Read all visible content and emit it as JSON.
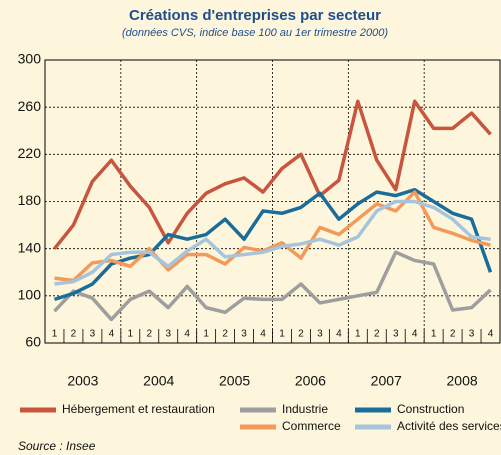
{
  "chart_data": {
    "type": "line",
    "title": "Créations d'entreprises par secteur",
    "subtitle": "(données CVS, indice base 100 au 1er trimestre 2000)",
    "categories": [
      "1",
      "2",
      "3",
      "4",
      "1",
      "2",
      "3",
      "4",
      "1",
      "2",
      "3",
      "4",
      "1",
      "2",
      "3",
      "4",
      "1",
      "2",
      "3",
      "4",
      "1",
      "2",
      "3",
      "4"
    ],
    "years": [
      "2003",
      "2004",
      "2005",
      "2006",
      "2007",
      "2008"
    ],
    "ylim": [
      60,
      300
    ],
    "yticks": [
      60,
      100,
      140,
      180,
      220,
      260,
      300
    ],
    "grid": true,
    "series": [
      {
        "name": "Hébergement et restauration",
        "color": "#c8553d",
        "values": [
          140,
          160,
          197,
          215,
          193,
          175,
          145,
          170,
          187,
          195,
          200,
          188,
          208,
          220,
          185,
          198,
          265,
          215,
          190,
          265,
          242,
          242,
          255,
          237
        ]
      },
      {
        "name": "Industrie",
        "color": "#9e9e9e",
        "values": [
          87,
          104,
          98,
          80,
          97,
          104,
          90,
          108,
          90,
          86,
          98,
          97,
          97,
          110,
          94,
          97,
          100,
          103,
          137,
          130,
          127,
          88,
          90,
          105
        ]
      },
      {
        "name": "Construction",
        "color": "#1a6d9a",
        "values": [
          97,
          102,
          110,
          127,
          132,
          135,
          152,
          148,
          152,
          165,
          148,
          172,
          170,
          175,
          187,
          165,
          178,
          188,
          185,
          190,
          180,
          170,
          165,
          120
        ]
      },
      {
        "name": "Commerce",
        "color": "#f39a5b",
        "values": [
          115,
          113,
          128,
          130,
          125,
          140,
          122,
          135,
          135,
          127,
          141,
          138,
          145,
          132,
          158,
          152,
          165,
          178,
          172,
          188,
          158,
          153,
          147,
          143
        ]
      },
      {
        "name": "Activité des services",
        "color": "#a6c4dc",
        "values": [
          110,
          112,
          120,
          135,
          137,
          137,
          125,
          138,
          148,
          133,
          135,
          137,
          142,
          144,
          148,
          143,
          150,
          172,
          180,
          180,
          175,
          165,
          150,
          148
        ]
      }
    ],
    "source": "Source : Insee"
  }
}
